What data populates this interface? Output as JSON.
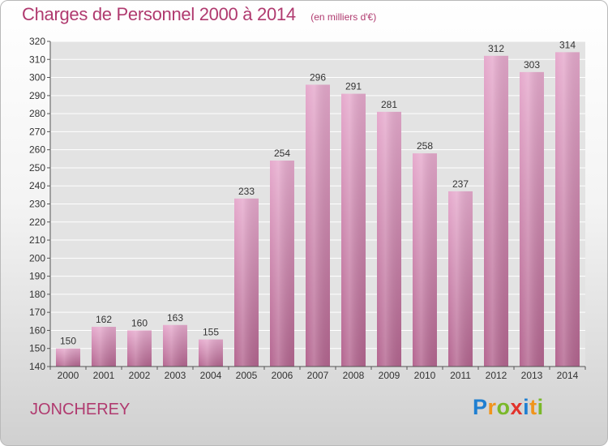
{
  "chart_data": {
    "type": "bar",
    "title": "Charges de Personnel 2000 à 2014",
    "subtitle": "(en milliers d'€)",
    "categories": [
      "2000",
      "2001",
      "2002",
      "2003",
      "2004",
      "2005",
      "2006",
      "2007",
      "2008",
      "2009",
      "2010",
      "2011",
      "2012",
      "2013",
      "2014"
    ],
    "values": [
      150,
      162,
      160,
      163,
      155,
      233,
      254,
      296,
      291,
      281,
      258,
      237,
      312,
      303,
      314
    ],
    "ylim": [
      140,
      320
    ],
    "yticks": [
      140,
      150,
      160,
      170,
      180,
      190,
      200,
      210,
      220,
      230,
      240,
      250,
      260,
      270,
      280,
      290,
      300,
      310,
      320
    ],
    "grid": true,
    "bar_color": "#d07aa8",
    "label": "JONCHEREY"
  },
  "logo": {
    "letters": [
      "P",
      "r",
      "o",
      "x",
      "i",
      "t",
      "i"
    ],
    "colors": [
      "#1f7fd1",
      "#f0941c",
      "#7ab829",
      "#e2322b",
      "#1f7fd1",
      "#f0941c",
      "#7ab829"
    ]
  }
}
